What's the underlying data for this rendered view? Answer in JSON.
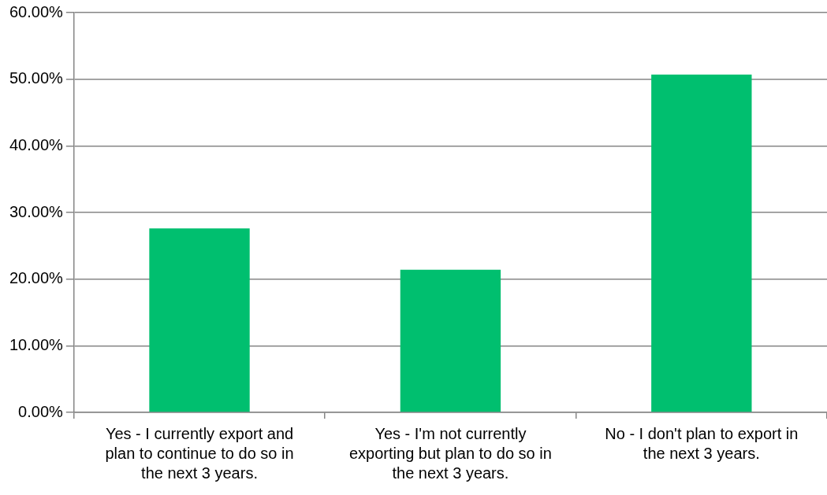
{
  "chart_data": {
    "type": "bar",
    "categories": [
      "Yes - I currently export and plan to continue to do so in the next 3 years.",
      "Yes - I'm not currently exporting but plan to do so in the next 3 years.",
      "No - I don't plan to export in the next 3 years."
    ],
    "values": [
      27.6,
      21.4,
      50.7
    ],
    "color": "#00bf6f",
    "ylim": [
      0,
      60
    ],
    "yticks": [
      {
        "value": 0,
        "label": "0.00%"
      },
      {
        "value": 10,
        "label": "10.00%"
      },
      {
        "value": 20,
        "label": "20.00%"
      },
      {
        "value": 30,
        "label": "30.00%"
      },
      {
        "value": 40,
        "label": "40.00%"
      },
      {
        "value": 50,
        "label": "50.00%"
      },
      {
        "value": 60,
        "label": "60.00%"
      }
    ],
    "grid": "y"
  }
}
